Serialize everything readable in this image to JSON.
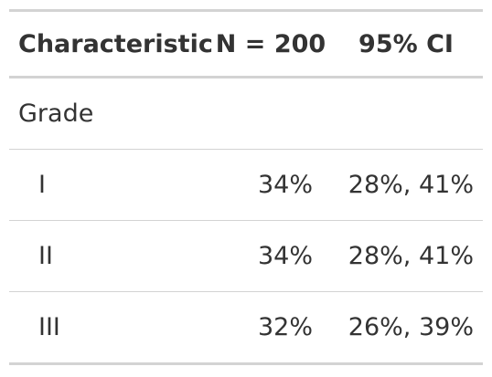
{
  "table": {
    "headers": {
      "characteristic": "Characteristic",
      "n": "N = 200",
      "ci": "95% CI"
    },
    "group": {
      "label": "Grade"
    },
    "rows": [
      {
        "label": "I",
        "n": "34%",
        "ci": "28%, 41%"
      },
      {
        "label": "II",
        "n": "34%",
        "ci": "28%, 41%"
      },
      {
        "label": "III",
        "n": "32%",
        "ci": "26%, 39%"
      }
    ]
  }
}
